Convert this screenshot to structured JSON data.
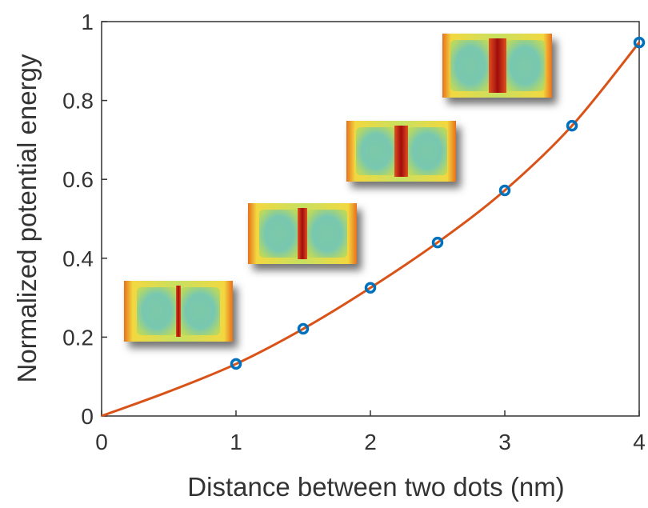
{
  "chart_data": {
    "type": "scatter",
    "xlabel": "Distance between two dots (nm)",
    "ylabel": "Normalized potential energy",
    "xlim": [
      0,
      4
    ],
    "ylim": [
      0,
      1
    ],
    "xticks": [
      0,
      1,
      2,
      3,
      4
    ],
    "yticks": [
      0,
      0.2,
      0.4,
      0.6,
      0.8,
      1
    ],
    "series": [
      {
        "type": "scatter",
        "color": "#0072bd",
        "x": [
          1,
          1.5,
          2,
          2.5,
          3,
          3.5,
          4
        ],
        "values": [
          0.132,
          0.221,
          0.325,
          0.44,
          0.572,
          0.736,
          0.947
        ]
      },
      {
        "type": "line",
        "color": "#d95319",
        "x": [
          0,
          0.5,
          1,
          1.5,
          2,
          2.5,
          3,
          3.5,
          4
        ],
        "values": [
          0,
          0.062,
          0.132,
          0.221,
          0.325,
          0.44,
          0.572,
          0.736,
          0.947
        ]
      }
    ]
  }
}
